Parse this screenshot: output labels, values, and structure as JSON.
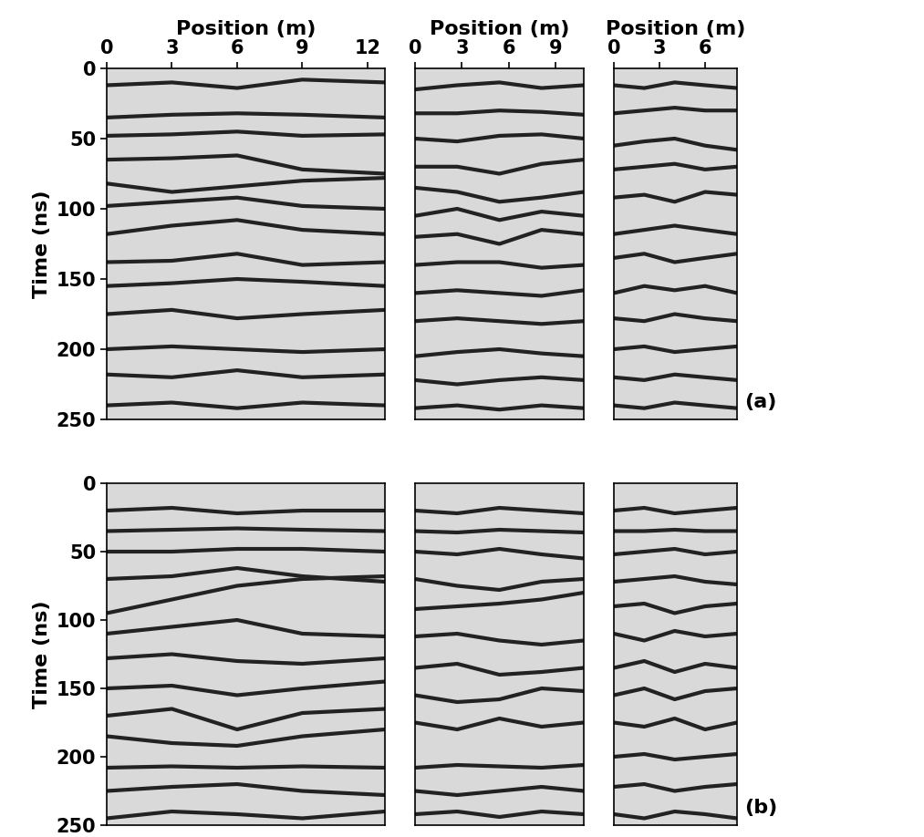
{
  "chart_data": [
    {
      "type": "line",
      "xlabel": "Position (m)",
      "ylabel": "Time (ns)",
      "xlim": [
        0,
        12.8
      ],
      "ylim": [
        250,
        0
      ],
      "xticks": [
        0,
        3,
        6,
        9,
        12
      ],
      "yticks": [
        0,
        50,
        100,
        150,
        200,
        250
      ],
      "tick_labels": true,
      "color": "#222222",
      "reflector_x": [
        0,
        3,
        6,
        9,
        12.8
      ],
      "reflectors": [
        [
          12,
          10,
          14,
          8,
          10
        ],
        [
          35,
          33,
          32,
          33,
          35
        ],
        [
          48,
          47,
          45,
          48,
          47
        ],
        [
          65,
          64,
          62,
          72,
          75
        ],
        [
          82,
          88,
          84,
          80,
          78
        ],
        [
          98,
          95,
          92,
          98,
          100
        ],
        [
          118,
          112,
          108,
          115,
          118
        ],
        [
          138,
          137,
          132,
          140,
          138
        ],
        [
          155,
          153,
          150,
          152,
          155
        ],
        [
          175,
          172,
          178,
          175,
          172
        ],
        [
          200,
          198,
          200,
          202,
          200
        ],
        [
          218,
          220,
          215,
          220,
          218
        ],
        [
          240,
          238,
          242,
          238,
          240
        ]
      ]
    },
    {
      "type": "line",
      "xlabel": "Position (m)",
      "xlim": [
        0,
        10.8
      ],
      "ylim": [
        250,
        0
      ],
      "xticks": [
        0,
        3,
        6,
        9
      ],
      "tick_labels": "x",
      "color": "#222222",
      "reflector_x": [
        0,
        2.7,
        5.4,
        8.1,
        10.8
      ],
      "reflectors": [
        [
          15,
          12,
          10,
          14,
          12
        ],
        [
          32,
          32,
          30,
          31,
          33
        ],
        [
          50,
          52,
          48,
          47,
          50
        ],
        [
          70,
          70,
          75,
          68,
          65
        ],
        [
          85,
          88,
          95,
          92,
          88
        ],
        [
          105,
          100,
          108,
          102,
          105
        ],
        [
          120,
          118,
          125,
          115,
          118
        ],
        [
          140,
          138,
          138,
          142,
          140
        ],
        [
          160,
          158,
          160,
          162,
          158
        ],
        [
          180,
          178,
          180,
          182,
          180
        ],
        [
          205,
          202,
          200,
          203,
          205
        ],
        [
          222,
          225,
          222,
          220,
          222
        ],
        [
          242,
          240,
          243,
          240,
          242
        ]
      ]
    },
    {
      "type": "line",
      "xlabel": "Position (m)",
      "xlim": [
        0,
        8.1
      ],
      "ylim": [
        250,
        0
      ],
      "xticks": [
        0,
        3,
        6
      ],
      "tick_labels": "x",
      "color": "#222222",
      "annotation": "(a)",
      "reflector_x": [
        0,
        2,
        4,
        6,
        8.1
      ],
      "reflectors": [
        [
          12,
          14,
          10,
          12,
          14
        ],
        [
          32,
          30,
          28,
          30,
          30
        ],
        [
          55,
          52,
          50,
          55,
          58
        ],
        [
          72,
          70,
          68,
          72,
          70
        ],
        [
          92,
          90,
          95,
          88,
          90
        ],
        [
          118,
          115,
          112,
          115,
          118
        ],
        [
          135,
          132,
          138,
          135,
          132
        ],
        [
          160,
          155,
          158,
          155,
          160
        ],
        [
          178,
          180,
          175,
          178,
          180
        ],
        [
          200,
          198,
          202,
          200,
          198
        ],
        [
          220,
          222,
          218,
          220,
          222
        ],
        [
          240,
          242,
          238,
          240,
          242
        ]
      ]
    },
    {
      "type": "line",
      "ylabel": "Time (ns)",
      "xlim": [
        0,
        12.8
      ],
      "ylim": [
        250,
        0
      ],
      "yticks": [
        0,
        50,
        100,
        150,
        200,
        250
      ],
      "tick_labels": "y",
      "color": "#222222",
      "reflector_x": [
        0,
        3,
        6,
        9,
        12.8
      ],
      "reflectors": [
        [
          20,
          18,
          22,
          20,
          20
        ],
        [
          35,
          34,
          33,
          34,
          35
        ],
        [
          50,
          50,
          48,
          48,
          50
        ],
        [
          70,
          68,
          62,
          68,
          72
        ],
        [
          95,
          85,
          75,
          70,
          68
        ],
        [
          110,
          105,
          100,
          110,
          112
        ],
        [
          128,
          125,
          130,
          132,
          128
        ],
        [
          150,
          148,
          155,
          150,
          145
        ],
        [
          170,
          165,
          180,
          168,
          165
        ],
        [
          185,
          190,
          192,
          185,
          180
        ],
        [
          208,
          207,
          208,
          207,
          208
        ],
        [
          225,
          222,
          220,
          225,
          228
        ],
        [
          245,
          240,
          242,
          245,
          240
        ]
      ]
    },
    {
      "type": "line",
      "xlim": [
        0,
        10.8
      ],
      "ylim": [
        250,
        0
      ],
      "tick_labels": false,
      "color": "#222222",
      "reflector_x": [
        0,
        2.7,
        5.4,
        8.1,
        10.8
      ],
      "reflectors": [
        [
          20,
          22,
          18,
          20,
          22
        ],
        [
          35,
          36,
          34,
          35,
          36
        ],
        [
          50,
          52,
          48,
          52,
          55
        ],
        [
          70,
          75,
          78,
          72,
          70
        ],
        [
          92,
          90,
          88,
          85,
          80
        ],
        [
          112,
          110,
          115,
          118,
          115
        ],
        [
          135,
          132,
          140,
          138,
          135
        ],
        [
          155,
          160,
          158,
          150,
          152
        ],
        [
          175,
          180,
          172,
          178,
          175
        ],
        [
          208,
          206,
          207,
          208,
          206
        ],
        [
          225,
          228,
          225,
          222,
          225
        ],
        [
          242,
          240,
          244,
          240,
          242
        ]
      ]
    },
    {
      "type": "line",
      "xlim": [
        0,
        8.1
      ],
      "ylim": [
        250,
        0
      ],
      "tick_labels": false,
      "color": "#222222",
      "annotation": "(b)",
      "reflector_x": [
        0,
        2,
        4,
        6,
        8.1
      ],
      "reflectors": [
        [
          20,
          18,
          22,
          20,
          18
        ],
        [
          35,
          35,
          34,
          35,
          35
        ],
        [
          52,
          50,
          48,
          52,
          50
        ],
        [
          72,
          70,
          68,
          72,
          74
        ],
        [
          90,
          88,
          95,
          90,
          88
        ],
        [
          110,
          115,
          108,
          112,
          110
        ],
        [
          135,
          130,
          138,
          132,
          135
        ],
        [
          155,
          150,
          158,
          152,
          150
        ],
        [
          175,
          178,
          172,
          180,
          175
        ],
        [
          200,
          198,
          202,
          200,
          198
        ],
        [
          222,
          220,
          225,
          222,
          220
        ],
        [
          242,
          245,
          240,
          242,
          245
        ]
      ]
    }
  ]
}
